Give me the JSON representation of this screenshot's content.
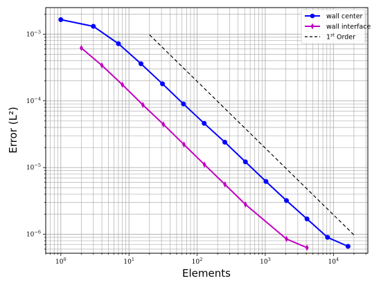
{
  "chart_data": {
    "type": "line",
    "xscale": "log",
    "yscale": "log",
    "xlabel": "Elements",
    "ylabel": "Error (L²)",
    "xlim": [
      0.6,
      32000
    ],
    "ylim": [
      5.2e-07,
      0.0025
    ],
    "grid": true,
    "legend_position": "top-right",
    "x_ticks": [
      {
        "value": 1,
        "base": "10",
        "exp": "0"
      },
      {
        "value": 10,
        "base": "10",
        "exp": "1"
      },
      {
        "value": 100,
        "base": "10",
        "exp": "2"
      },
      {
        "value": 1000,
        "base": "10",
        "exp": "3"
      },
      {
        "value": 10000,
        "base": "10",
        "exp": "4"
      }
    ],
    "y_ticks": [
      {
        "value": 1e-06,
        "base": "10",
        "exp": "−6"
      },
      {
        "value": 1e-05,
        "base": "10",
        "exp": "−5"
      },
      {
        "value": 0.0001,
        "base": "10",
        "exp": "−4"
      },
      {
        "value": 0.001,
        "base": "10",
        "exp": "−3"
      }
    ],
    "series": [
      {
        "name": "wall center",
        "color": "#0000ff",
        "marker": "circle",
        "dash": "solid",
        "x": [
          1,
          3,
          7,
          15,
          31,
          63,
          127,
          255,
          511,
          1023,
          2047,
          4095,
          8191,
          16383
        ],
        "y": [
          0.00165,
          0.00131,
          0.00072,
          0.00036,
          0.00018,
          9e-05,
          4.6e-05,
          2.4e-05,
          1.22e-05,
          6.2e-06,
          3.2e-06,
          1.7e-06,
          9e-07,
          6.6e-07
        ]
      },
      {
        "name": "wall interface",
        "color": "#c000c0",
        "marker": "thin_diamond",
        "dash": "solid",
        "x": [
          2,
          4,
          8,
          16,
          32,
          64,
          128,
          256,
          512,
          2048,
          4096
        ],
        "y": [
          0.00062,
          0.00034,
          0.000175,
          8.7e-05,
          4.45e-05,
          2.22e-05,
          1.11e-05,
          5.6e-06,
          2.8e-06,
          8.5e-07,
          6.3e-07
        ]
      },
      {
        "name_base": "1",
        "name_sup": "st",
        "name_rest": " Order",
        "color": "#000000",
        "marker": "none",
        "dash": "dashed",
        "x": [
          20,
          20000
        ],
        "y": [
          0.00098,
          9.8e-07
        ]
      }
    ]
  }
}
